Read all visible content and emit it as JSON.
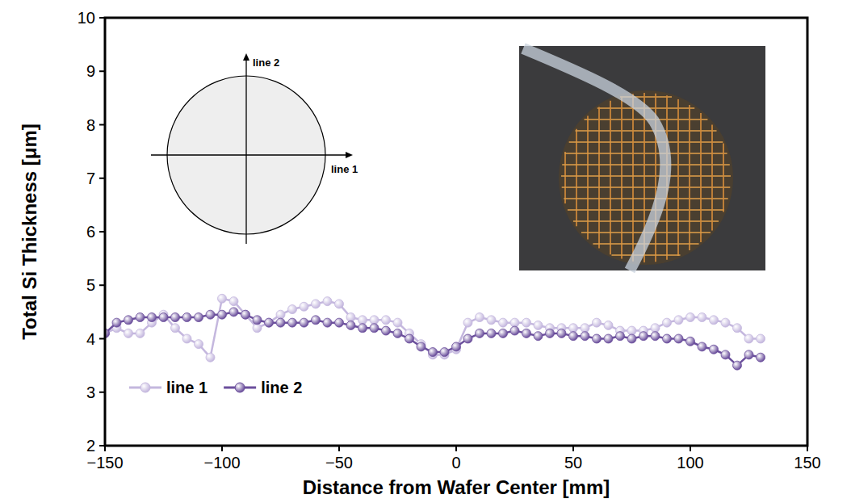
{
  "chart_data": {
    "type": "line",
    "x_label": "Distance from Wafer Center [mm]",
    "y_label": "Total Si Thickness [μm]",
    "x": [
      -150,
      -145,
      -140,
      -135,
      -130,
      -125,
      -120,
      -115,
      -110,
      -105,
      -100,
      -95,
      -90,
      -85,
      -80,
      -75,
      -70,
      -65,
      -60,
      -55,
      -50,
      -45,
      -40,
      -35,
      -30,
      -25,
      -20,
      -15,
      -10,
      -5,
      0,
      5,
      10,
      15,
      20,
      25,
      30,
      35,
      40,
      45,
      50,
      55,
      60,
      65,
      70,
      75,
      80,
      85,
      90,
      95,
      100,
      105,
      110,
      115,
      120,
      125,
      130
    ],
    "series": [
      {
        "name": "line 1",
        "color": "#c4b7de",
        "marker": "circle",
        "values": [
          4.1,
          4.2,
          4.1,
          4.1,
          4.3,
          4.45,
          4.2,
          4.0,
          3.9,
          3.65,
          4.75,
          4.7,
          4.45,
          4.2,
          4.3,
          4.45,
          4.55,
          4.6,
          4.65,
          4.7,
          4.65,
          4.4,
          4.35,
          4.35,
          4.35,
          4.3,
          4.1,
          3.9,
          3.7,
          3.7,
          3.8,
          4.3,
          4.4,
          4.35,
          4.3,
          4.3,
          4.3,
          4.25,
          4.2,
          4.2,
          4.2,
          4.2,
          4.3,
          4.25,
          4.15,
          4.15,
          4.15,
          4.2,
          4.3,
          4.35,
          4.4,
          4.4,
          4.35,
          4.3,
          4.2,
          4.0,
          4.0
        ]
      },
      {
        "name": "line 2",
        "color": "#6b4f9c",
        "marker": "circle",
        "values": [
          4.1,
          4.3,
          4.35,
          4.4,
          4.4,
          4.4,
          4.4,
          4.4,
          4.4,
          4.45,
          4.45,
          4.5,
          4.45,
          4.35,
          4.3,
          4.3,
          4.3,
          4.3,
          4.35,
          4.3,
          4.3,
          4.25,
          4.2,
          4.2,
          4.15,
          4.1,
          4.0,
          3.85,
          3.75,
          3.75,
          3.85,
          4.0,
          4.1,
          4.1,
          4.1,
          4.15,
          4.1,
          4.05,
          4.1,
          4.1,
          4.05,
          4.05,
          4.0,
          4.0,
          4.05,
          4.0,
          4.05,
          4.05,
          4.0,
          4.0,
          3.95,
          3.85,
          3.8,
          3.7,
          3.5,
          3.7,
          3.65
        ]
      }
    ],
    "xlim": [
      -150,
      150
    ],
    "xticks": [
      {
        "value": -150,
        "label": "−150"
      },
      {
        "value": -100,
        "label": "−100"
      },
      {
        "value": -50,
        "label": "−50"
      },
      0,
      50,
      100,
      150
    ],
    "ylim": [
      2,
      10
    ],
    "yticks": [
      2,
      3,
      4,
      5,
      6,
      7,
      8,
      9,
      10
    ],
    "legend": "lower left",
    "annotations": [
      "line 2",
      "line 1"
    ]
  }
}
